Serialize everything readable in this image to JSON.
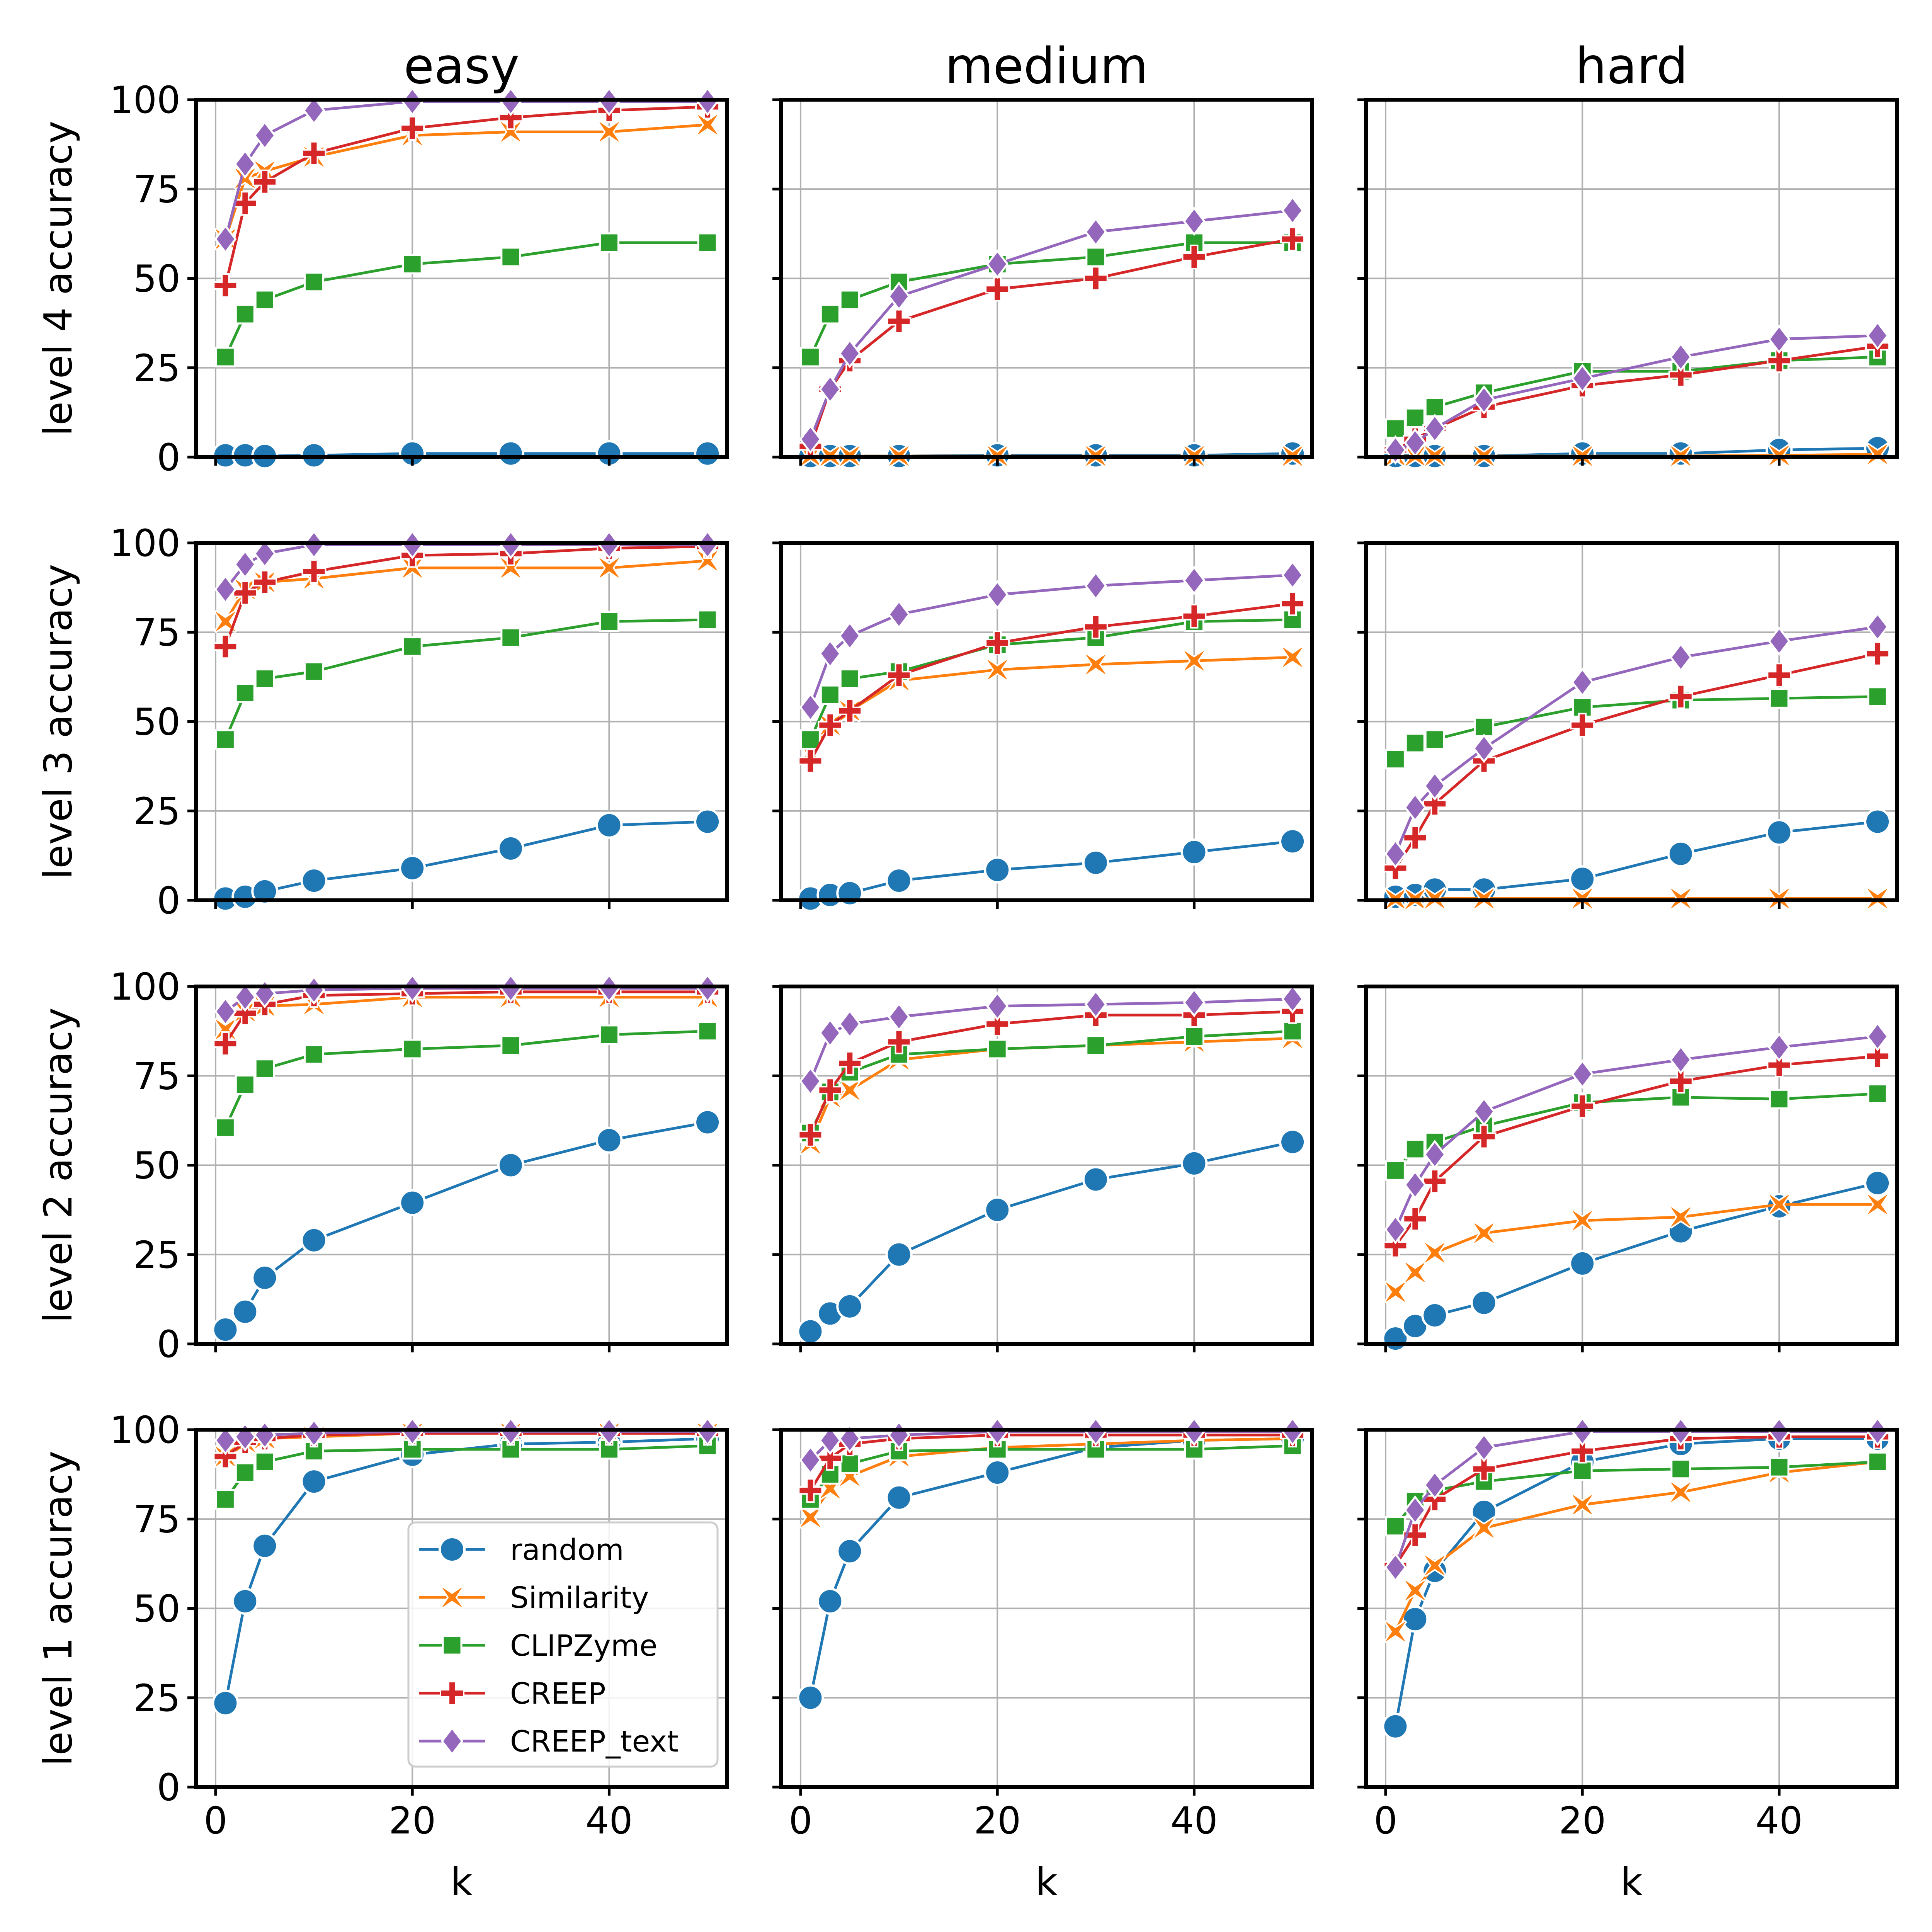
{
  "figure": {
    "column_titles": [
      "easy",
      "medium",
      "hard"
    ],
    "row_ylabels": [
      "level 4 accuracy",
      "level 3 accuracy",
      "level 2 accuracy",
      "level 1 accuracy"
    ],
    "xlabel": "k",
    "x_ticks": [
      "0",
      "20",
      "40"
    ],
    "y_ticks": [
      "0",
      "25",
      "50",
      "75",
      "100"
    ]
  },
  "series_styles": [
    {
      "name": "random",
      "color": "#1f77b4",
      "marker": "circle"
    },
    {
      "name": "Similarity",
      "color": "#ff7f0e",
      "marker": "x"
    },
    {
      "name": "CLIPZyme",
      "color": "#2ca02c",
      "marker": "square"
    },
    {
      "name": "CREEP",
      "color": "#d62728",
      "marker": "plus"
    },
    {
      "name": "CREEP_text",
      "color": "#9467bd",
      "marker": "diamond"
    }
  ],
  "legend": {
    "position": "bottom-right of level 1 easy panel",
    "entries": [
      "random",
      "Similarity",
      "CLIPZyme",
      "CREEP",
      "CREEP_text"
    ]
  },
  "chart_data": [
    {
      "type": "line",
      "row": "level 4 accuracy",
      "column": "easy",
      "x": [
        1,
        3,
        5,
        10,
        20,
        30,
        40,
        50
      ],
      "xlim": [
        -2,
        52
      ],
      "ylim": [
        0,
        100
      ],
      "series": [
        {
          "name": "random",
          "values": [
            0.5,
            0.5,
            0.3,
            0.5,
            1.0,
            1.0,
            1.0,
            1.0
          ]
        },
        {
          "name": "Similarity",
          "values": [
            61,
            78,
            80,
            84,
            90,
            91,
            91,
            93
          ]
        },
        {
          "name": "CLIPZyme",
          "values": [
            28,
            40,
            44,
            49,
            54,
            56,
            60,
            60
          ]
        },
        {
          "name": "CREEP",
          "values": [
            48,
            71,
            77,
            85,
            92,
            95,
            97,
            98
          ]
        },
        {
          "name": "CREEP_text",
          "values": [
            61,
            82,
            90,
            97,
            99.5,
            99.5,
            99.5,
            99.5
          ]
        }
      ]
    },
    {
      "type": "line",
      "row": "level 4 accuracy",
      "column": "medium",
      "x": [
        1,
        3,
        5,
        10,
        20,
        30,
        40,
        50
      ],
      "xlim": [
        -2,
        52
      ],
      "ylim": [
        0,
        100
      ],
      "series": [
        {
          "name": "random",
          "values": [
            0.3,
            0.3,
            0.3,
            0.3,
            0.5,
            0.5,
            0.5,
            1.0
          ]
        },
        {
          "name": "Similarity",
          "values": [
            0.3,
            0.3,
            0.3,
            0.3,
            0.3,
            0.3,
            0.3,
            0.3
          ]
        },
        {
          "name": "CLIPZyme",
          "values": [
            28,
            40,
            44,
            49,
            54,
            56,
            60,
            60
          ]
        },
        {
          "name": "CREEP",
          "values": [
            3,
            19,
            27,
            38,
            47,
            50,
            56,
            61
          ]
        },
        {
          "name": "CREEP_text",
          "values": [
            5,
            19,
            29,
            45,
            54,
            63,
            66,
            69
          ]
        }
      ]
    },
    {
      "type": "line",
      "row": "level 4 accuracy",
      "column": "hard",
      "x": [
        1,
        3,
        5,
        10,
        20,
        30,
        40,
        50
      ],
      "xlim": [
        -2,
        52
      ],
      "ylim": [
        0,
        100
      ],
      "series": [
        {
          "name": "random",
          "values": [
            0.3,
            0.3,
            0.3,
            0.3,
            1.0,
            1.0,
            2.0,
            2.5
          ]
        },
        {
          "name": "Similarity",
          "values": [
            0.3,
            0.3,
            0.3,
            0.3,
            0.3,
            0.3,
            0.5,
            0.8
          ]
        },
        {
          "name": "CLIPZyme",
          "values": [
            8,
            11,
            14,
            18,
            24,
            24,
            27,
            28
          ]
        },
        {
          "name": "CREEP",
          "values": [
            2,
            5,
            8,
            14,
            20,
            23,
            27,
            31
          ]
        },
        {
          "name": "CREEP_text",
          "values": [
            2,
            4,
            8,
            16,
            22,
            28,
            33,
            34
          ]
        }
      ]
    },
    {
      "type": "line",
      "row": "level 3 accuracy",
      "column": "easy",
      "x": [
        1,
        3,
        5,
        10,
        20,
        30,
        40,
        50
      ],
      "xlim": [
        -2,
        52
      ],
      "ylim": [
        0,
        100
      ],
      "series": [
        {
          "name": "random",
          "values": [
            0.5,
            1,
            2.5,
            5.5,
            9,
            14.5,
            21,
            22
          ]
        },
        {
          "name": "Similarity",
          "values": [
            78,
            87,
            89,
            90,
            93,
            93,
            93,
            95
          ]
        },
        {
          "name": "CLIPZyme",
          "values": [
            45,
            58,
            62,
            64,
            71,
            73.5,
            78,
            78.5
          ]
        },
        {
          "name": "CREEP",
          "values": [
            71,
            86,
            89,
            92,
            96.5,
            97,
            98.5,
            99
          ]
        },
        {
          "name": "CREEP_text",
          "values": [
            87,
            94,
            97,
            99.5,
            99.5,
            99.5,
            99.5,
            99.5
          ]
        }
      ]
    },
    {
      "type": "line",
      "row": "level 3 accuracy",
      "column": "medium",
      "x": [
        1,
        3,
        5,
        10,
        20,
        30,
        40,
        50
      ],
      "xlim": [
        -2,
        52
      ],
      "ylim": [
        0,
        100
      ],
      "series": [
        {
          "name": "random",
          "values": [
            0.5,
            1.5,
            2,
            5.5,
            8.5,
            10.5,
            13.5,
            16.5
          ]
        },
        {
          "name": "Similarity",
          "values": [
            41,
            49,
            53,
            61.5,
            64.5,
            66,
            67,
            68
          ]
        },
        {
          "name": "CLIPZyme",
          "values": [
            45,
            57.5,
            62,
            64,
            71.5,
            73.5,
            78,
            78.5
          ]
        },
        {
          "name": "CREEP",
          "values": [
            39,
            49,
            53,
            63,
            72,
            76.5,
            79.5,
            83
          ]
        },
        {
          "name": "CREEP_text",
          "values": [
            54,
            69,
            74,
            80,
            85.5,
            88,
            89.5,
            91
          ]
        }
      ]
    },
    {
      "type": "line",
      "row": "level 3 accuracy",
      "column": "hard",
      "x": [
        1,
        3,
        5,
        10,
        20,
        30,
        40,
        50
      ],
      "xlim": [
        -2,
        52
      ],
      "ylim": [
        0,
        100
      ],
      "series": [
        {
          "name": "random",
          "values": [
            1,
            1.5,
            3,
            3,
            6,
            13,
            19,
            22
          ]
        },
        {
          "name": "Similarity",
          "values": [
            0.3,
            0.3,
            0.5,
            0.5,
            0.5,
            0.5,
            0.5,
            0.5
          ]
        },
        {
          "name": "CLIPZyme",
          "values": [
            39.5,
            44,
            45,
            48.5,
            54,
            56,
            56.5,
            57
          ]
        },
        {
          "name": "CREEP",
          "values": [
            9,
            17.5,
            27,
            39,
            49,
            57,
            63,
            69
          ]
        },
        {
          "name": "CREEP_text",
          "values": [
            13,
            26,
            32,
            42.5,
            61,
            68,
            72.5,
            76.5
          ]
        }
      ]
    },
    {
      "type": "line",
      "row": "level 2 accuracy",
      "column": "easy",
      "x": [
        1,
        3,
        5,
        10,
        20,
        30,
        40,
        50
      ],
      "xlim": [
        -2,
        52
      ],
      "ylim": [
        0,
        100
      ],
      "series": [
        {
          "name": "random",
          "values": [
            4,
            9,
            18.5,
            29,
            39.5,
            50,
            57,
            62
          ]
        },
        {
          "name": "Similarity",
          "values": [
            88,
            93,
            94.5,
            95,
            97,
            97,
            97,
            97
          ]
        },
        {
          "name": "CLIPZyme",
          "values": [
            60.5,
            72.5,
            77,
            81,
            82.5,
            83.5,
            86.5,
            87.5
          ]
        },
        {
          "name": "CREEP",
          "values": [
            84,
            92.5,
            95,
            97.5,
            98,
            98.5,
            98.5,
            98.5
          ]
        },
        {
          "name": "CREEP_text",
          "values": [
            93,
            97,
            98,
            99,
            99.5,
            99.5,
            99.5,
            99.5
          ]
        }
      ]
    },
    {
      "type": "line",
      "row": "level 2 accuracy",
      "column": "medium",
      "x": [
        1,
        3,
        5,
        10,
        20,
        30,
        40,
        50
      ],
      "xlim": [
        -2,
        52
      ],
      "ylim": [
        0,
        100
      ],
      "series": [
        {
          "name": "random",
          "values": [
            3.5,
            8.5,
            10.5,
            25,
            37.5,
            46,
            50.5,
            56.5
          ]
        },
        {
          "name": "Similarity",
          "values": [
            56,
            69,
            71,
            79.5,
            82.5,
            83.5,
            84.5,
            85.5
          ]
        },
        {
          "name": "CLIPZyme",
          "values": [
            59,
            70.5,
            76,
            81,
            82.5,
            83.5,
            86,
            87.5
          ]
        },
        {
          "name": "CREEP",
          "values": [
            58.5,
            71,
            78.5,
            84.5,
            89.5,
            92,
            92,
            93
          ]
        },
        {
          "name": "CREEP_text",
          "values": [
            73.5,
            87,
            89.5,
            91.5,
            94.5,
            95,
            95.5,
            96.5
          ]
        }
      ]
    },
    {
      "type": "line",
      "row": "level 2 accuracy",
      "column": "hard",
      "x": [
        1,
        3,
        5,
        10,
        20,
        30,
        40,
        50
      ],
      "xlim": [
        -2,
        52
      ],
      "ylim": [
        0,
        100
      ],
      "series": [
        {
          "name": "random",
          "values": [
            1.5,
            5,
            8,
            11.5,
            22.5,
            31.5,
            38.5,
            45
          ]
        },
        {
          "name": "Similarity",
          "values": [
            14.5,
            20,
            25.5,
            31,
            34.5,
            35.5,
            39,
            39
          ]
        },
        {
          "name": "CLIPZyme",
          "values": [
            48.5,
            54.5,
            56.5,
            61,
            67.5,
            69,
            68.5,
            70
          ]
        },
        {
          "name": "CREEP",
          "values": [
            27.5,
            35,
            45.5,
            58,
            66.5,
            73.5,
            78,
            80.5
          ]
        },
        {
          "name": "CREEP_text",
          "values": [
            32,
            44.5,
            53,
            65,
            75.5,
            79.5,
            83,
            86
          ]
        }
      ]
    },
    {
      "type": "line",
      "row": "level 1 accuracy",
      "column": "easy",
      "x": [
        1,
        3,
        5,
        10,
        20,
        30,
        40,
        50
      ],
      "xlim": [
        -2,
        52
      ],
      "ylim": [
        0,
        100
      ],
      "series": [
        {
          "name": "random",
          "values": [
            23.5,
            52,
            67.5,
            85.5,
            93,
            96,
            96.5,
            97.5
          ]
        },
        {
          "name": "Similarity",
          "values": [
            92.5,
            96.5,
            97.5,
            98,
            99,
            99,
            99,
            99
          ]
        },
        {
          "name": "CLIPZyme",
          "values": [
            80.5,
            88,
            91,
            94,
            94.5,
            94.5,
            94.5,
            95.5
          ]
        },
        {
          "name": "CREEP",
          "values": [
            92.5,
            96.5,
            97.5,
            98.5,
            99,
            99,
            99,
            99
          ]
        },
        {
          "name": "CREEP_text",
          "values": [
            97,
            98,
            98.5,
            99,
            99.5,
            99.5,
            99.5,
            99.5
          ]
        }
      ]
    },
    {
      "type": "line",
      "row": "level 1 accuracy",
      "column": "medium",
      "x": [
        1,
        3,
        5,
        10,
        20,
        30,
        40,
        50
      ],
      "xlim": [
        -2,
        52
      ],
      "ylim": [
        0,
        100
      ],
      "series": [
        {
          "name": "random",
          "values": [
            25,
            52,
            66,
            81,
            88,
            95,
            97,
            97.5
          ]
        },
        {
          "name": "Similarity",
          "values": [
            75.5,
            83.5,
            87,
            92.5,
            95,
            96,
            97,
            97.5
          ]
        },
        {
          "name": "CLIPZyme",
          "values": [
            80.5,
            87.5,
            90.5,
            94,
            94.5,
            94.5,
            94.5,
            95.5
          ]
        },
        {
          "name": "CREEP",
          "values": [
            83,
            92,
            96,
            97.5,
            98.5,
            98.5,
            98.5,
            98.5
          ]
        },
        {
          "name": "CREEP_text",
          "values": [
            91.5,
            97,
            97.5,
            98.5,
            99.5,
            99.5,
            99.5,
            99.5
          ]
        }
      ]
    },
    {
      "type": "line",
      "row": "level 1 accuracy",
      "column": "hard",
      "x": [
        1,
        3,
        5,
        10,
        20,
        30,
        40,
        50
      ],
      "xlim": [
        -2,
        52
      ],
      "ylim": [
        0,
        100
      ],
      "series": [
        {
          "name": "random",
          "values": [
            17,
            47,
            60.5,
            77,
            91,
            96,
            97.5,
            97.5
          ]
        },
        {
          "name": "Similarity",
          "values": [
            43.5,
            55,
            62,
            72.5,
            79,
            82.5,
            88,
            91
          ]
        },
        {
          "name": "CLIPZyme",
          "values": [
            73,
            80,
            83,
            85.5,
            88.5,
            89,
            89.5,
            91
          ]
        },
        {
          "name": "CREEP",
          "values": [
            62,
            70.5,
            80.5,
            89,
            94,
            97.5,
            98,
            98
          ]
        },
        {
          "name": "CREEP_text",
          "values": [
            61.5,
            77.5,
            84.5,
            95,
            99.5,
            99.5,
            99.5,
            99.5
          ]
        }
      ]
    }
  ]
}
